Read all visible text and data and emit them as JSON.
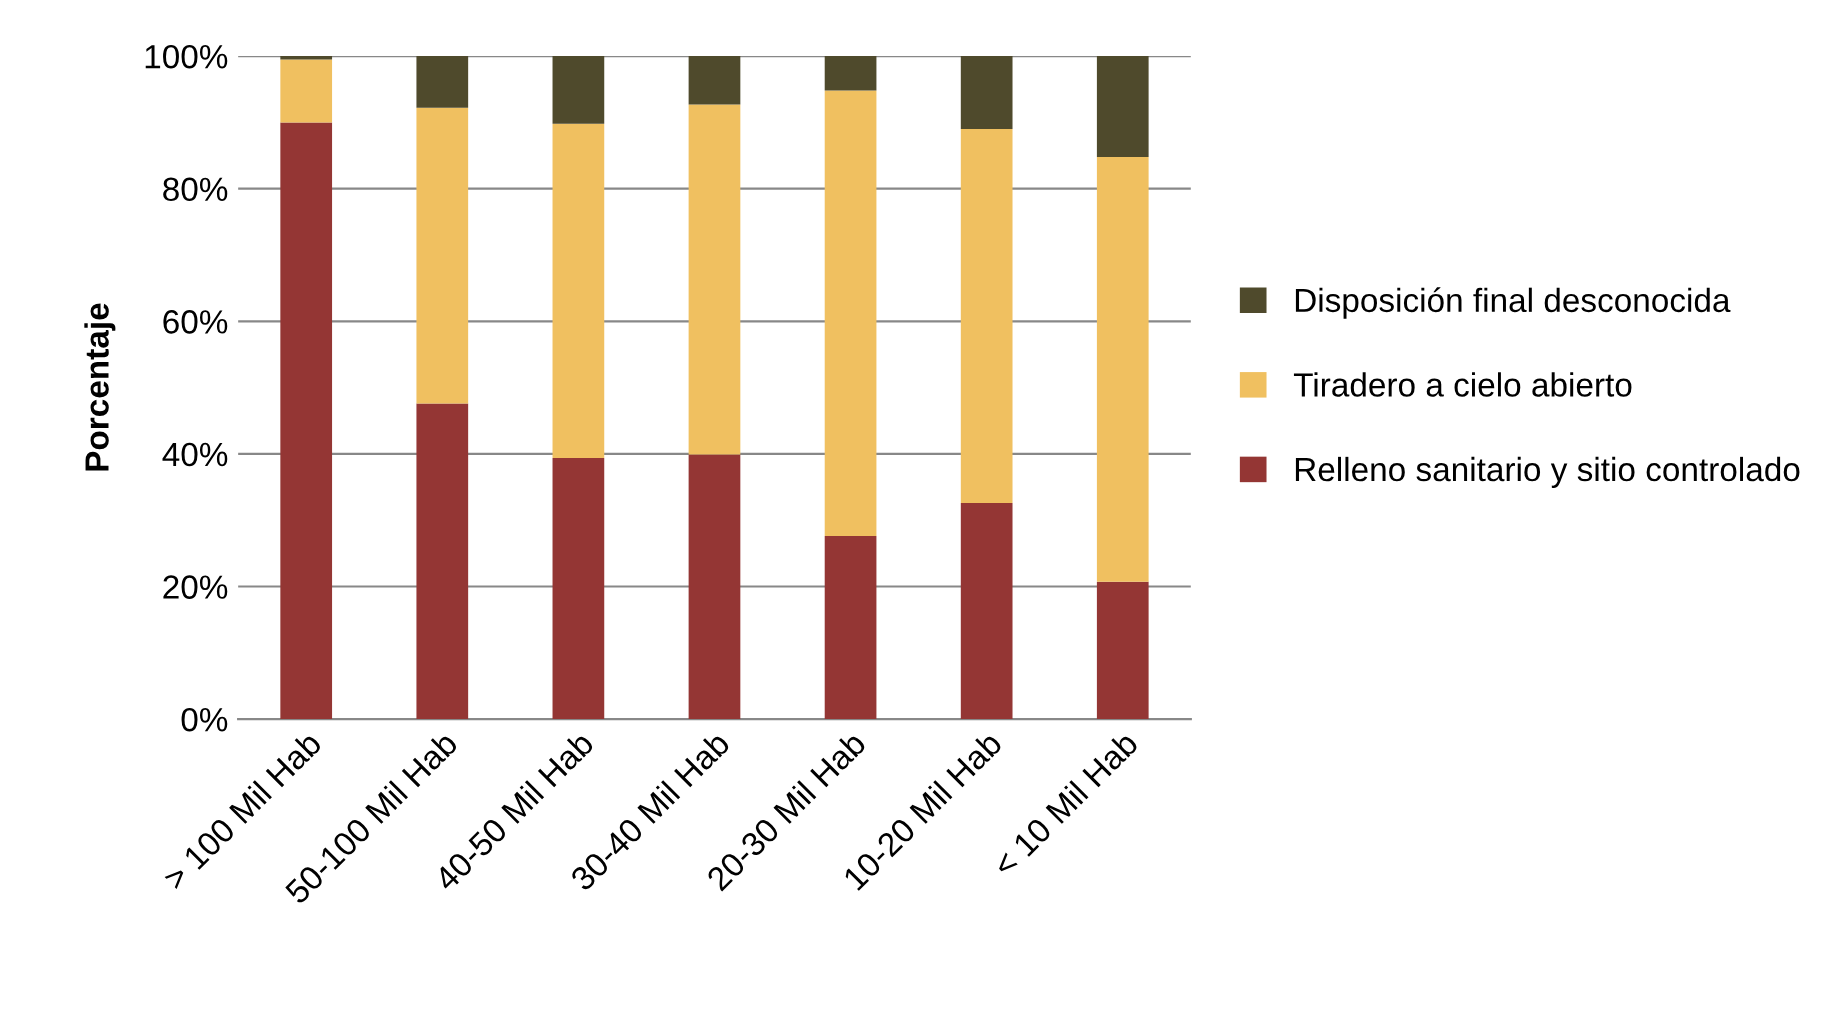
{
  "chart_data": {
    "type": "bar",
    "stacked": true,
    "ylabel": "Porcentaje",
    "categories": [
      "> 100 Mil Hab",
      "50-100 Mil Hab",
      "40-50 Mil Hab",
      "30-40 Mil Hab",
      "20-30 Mil Hab",
      "10-20 Mil Hab",
      "< 10 Mil Hab"
    ],
    "series": [
      {
        "name": "Relleno sanitario y sitio controlado",
        "color": "#943634",
        "values": [
          90,
          47.6,
          39.4,
          39.9,
          27.6,
          32.6,
          20.7
        ]
      },
      {
        "name": "Tiradero a cielo abierto",
        "color": "#f0c060",
        "values": [
          9.5,
          44.6,
          50.4,
          52.8,
          67.2,
          56.4,
          64.1
        ]
      },
      {
        "name": "Disposición final desconocida",
        "color": "#4f4a2c",
        "values": [
          0.5,
          7.8,
          10.2,
          7.3,
          5.2,
          11.0,
          15.2
        ]
      }
    ],
    "ylim": [
      0,
      100
    ],
    "yticks": [
      {
        "value": 0,
        "label": "0%"
      },
      {
        "value": 20,
        "label": "20%"
      },
      {
        "value": 40,
        "label": "40%"
      },
      {
        "value": 60,
        "label": "60%"
      },
      {
        "value": 80,
        "label": "80%"
      },
      {
        "value": 100,
        "label": "100%"
      }
    ],
    "grid": "y",
    "legend": "right"
  }
}
